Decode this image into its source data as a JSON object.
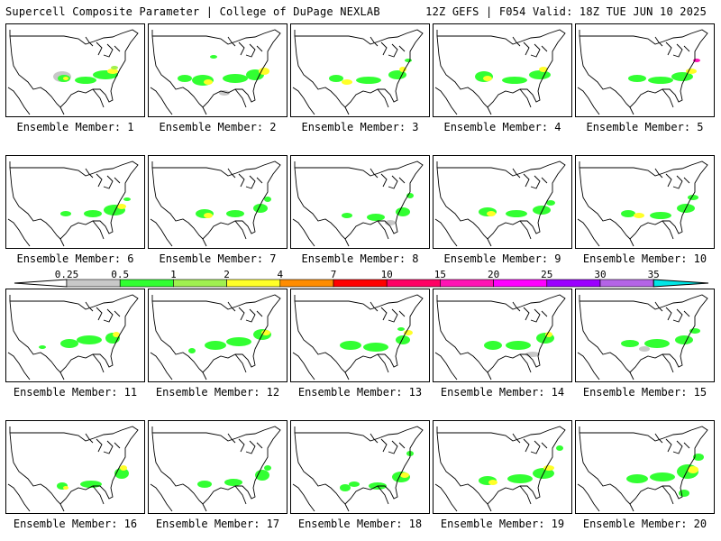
{
  "header": {
    "title": "Supercell Composite Parameter | College of DuPage NEXLAB",
    "run_info": "12Z GEFS | F054 Valid: 18Z TUE JUN 10 2025"
  },
  "panels": [
    {
      "label": "Ensemble Member: 1"
    },
    {
      "label": "Ensemble Member: 2"
    },
    {
      "label": "Ensemble Member: 3"
    },
    {
      "label": "Ensemble Member: 4"
    },
    {
      "label": "Ensemble Member: 5"
    },
    {
      "label": "Ensemble Member: 6"
    },
    {
      "label": "Ensemble Member: 7"
    },
    {
      "label": "Ensemble Member: 8"
    },
    {
      "label": "Ensemble Member: 9"
    },
    {
      "label": "Ensemble Member: 10"
    },
    {
      "label": "Ensemble Member: 11"
    },
    {
      "label": "Ensemble Member: 12"
    },
    {
      "label": "Ensemble Member: 13"
    },
    {
      "label": "Ensemble Member: 14"
    },
    {
      "label": "Ensemble Member: 15"
    },
    {
      "label": "Ensemble Member: 16"
    },
    {
      "label": "Ensemble Member: 17"
    },
    {
      "label": "Ensemble Member: 18"
    },
    {
      "label": "Ensemble Member: 19"
    },
    {
      "label": "Ensemble Member: 20"
    }
  ],
  "legend": {
    "ticks": [
      "0.25",
      "0.5",
      "1",
      "2",
      "4",
      "7",
      "10",
      "15",
      "20",
      "25",
      "30",
      "35"
    ],
    "colors": [
      "#c8c8c8",
      "#32ff32",
      "#a0f050",
      "#ffff28",
      "#ff8c00",
      "#ff0000",
      "#ff0064",
      "#ff14b4",
      "#ff00ff",
      "#9b00ff",
      "#b464e6",
      "#00e6e6"
    ]
  }
}
